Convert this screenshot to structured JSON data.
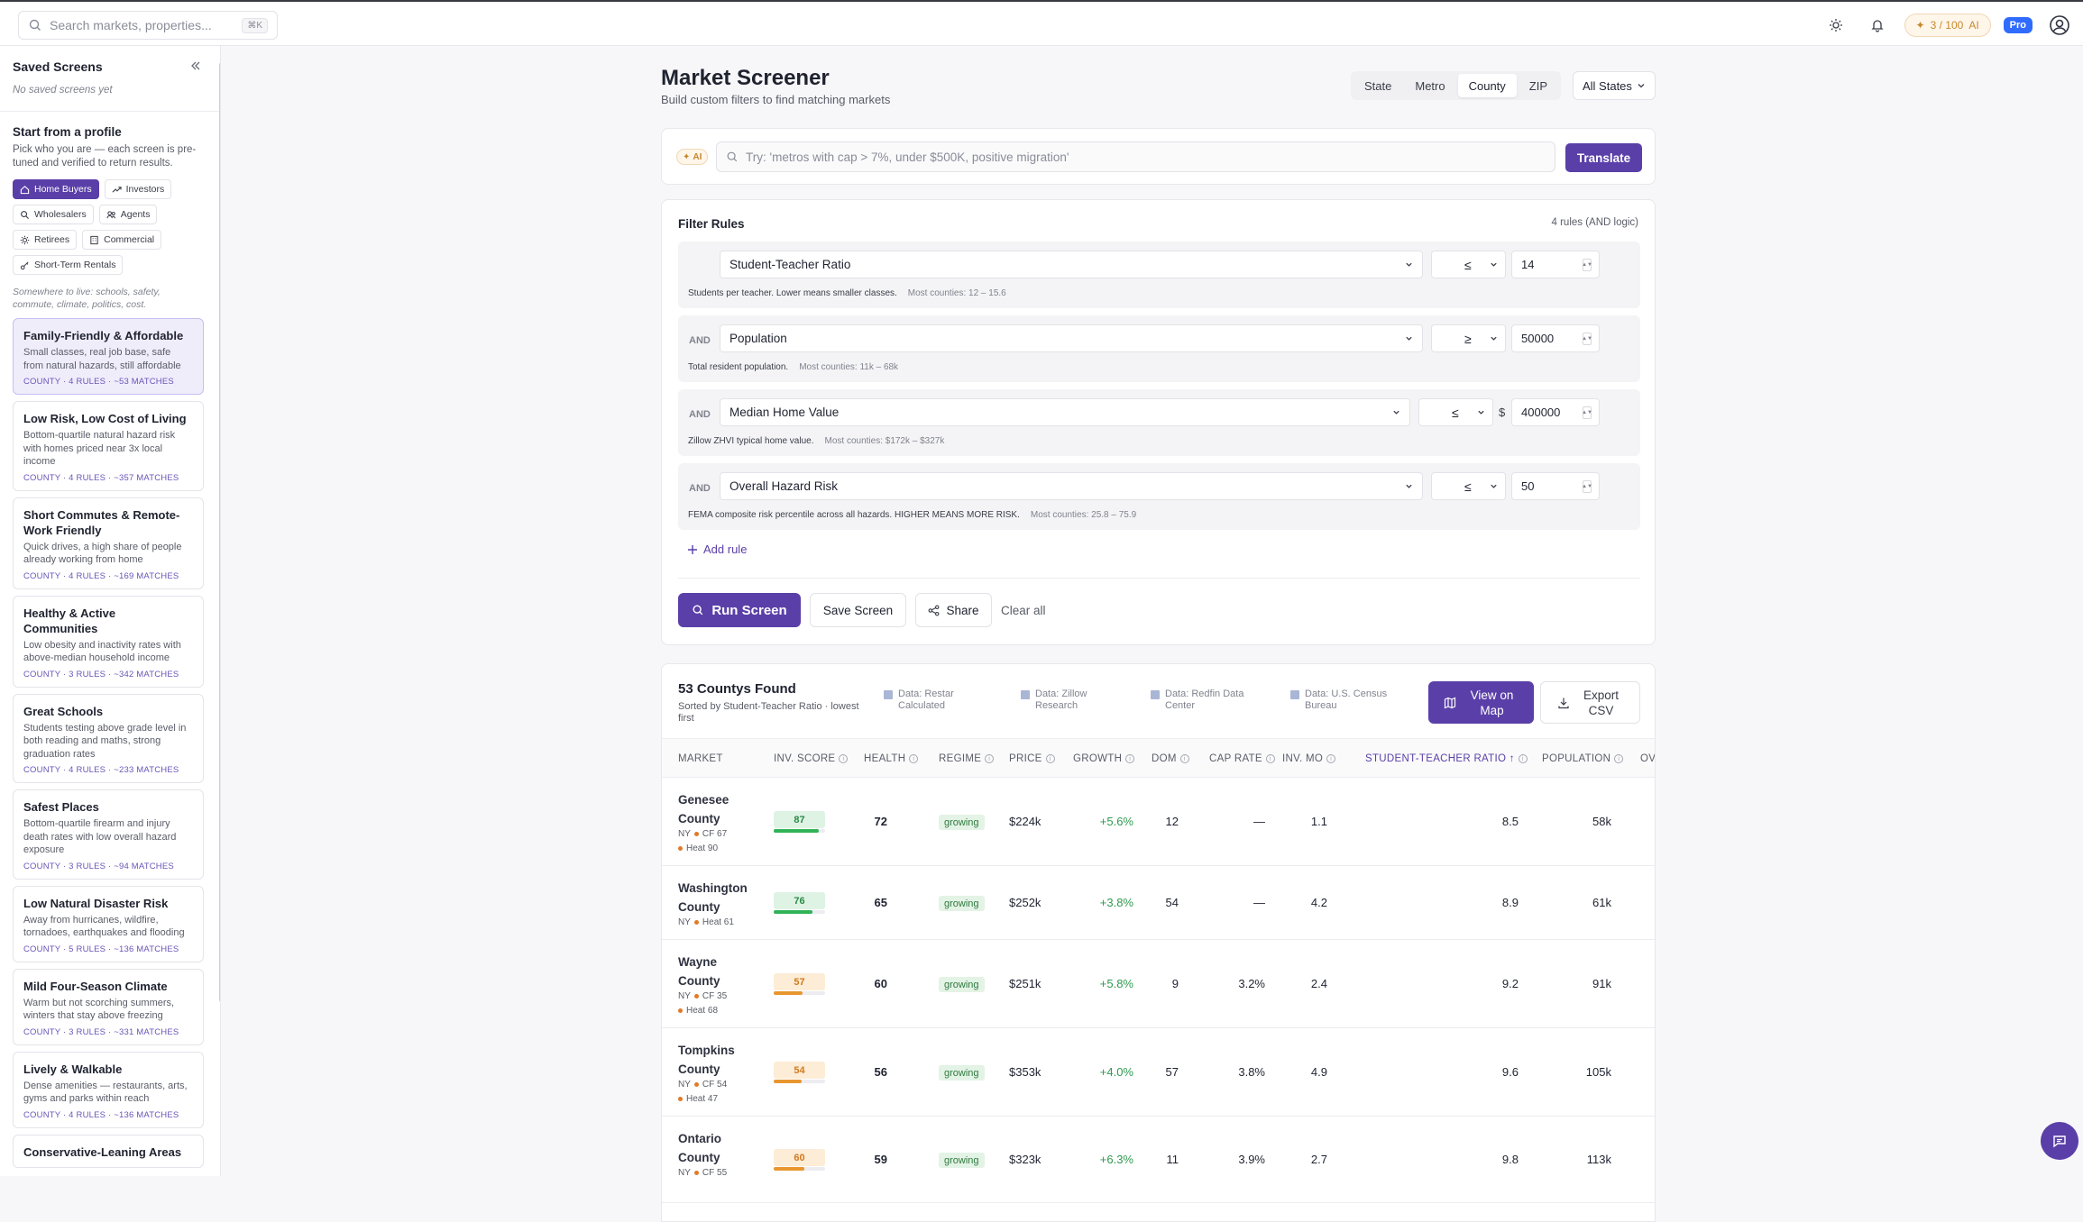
{
  "topbar": {
    "search_placeholder": "Search markets, properties...",
    "search_shortcut": "⌘K",
    "ai_credits": "3 / 100",
    "ai_label": "AI",
    "plan_badge": "Pro"
  },
  "sidebar": {
    "saved_title": "Saved Screens",
    "saved_empty": "No saved screens yet",
    "profile_title": "Start from a profile",
    "profile_desc": "Pick who you are — each screen is pre-tuned and verified to return results.",
    "profiles": [
      {
        "label": "Home Buyers",
        "icon": "home-icon",
        "active": true
      },
      {
        "label": "Investors",
        "icon": "trend-up-icon",
        "active": false
      },
      {
        "label": "Wholesalers",
        "icon": "search-icon",
        "active": false
      },
      {
        "label": "Agents",
        "icon": "users-icon",
        "active": false
      },
      {
        "label": "Retirees",
        "icon": "sun-icon",
        "active": false
      },
      {
        "label": "Commercial",
        "icon": "building-icon",
        "active": false
      },
      {
        "label": "Short-Term Rentals",
        "icon": "key-icon",
        "active": false
      }
    ],
    "hint": "Somewhere to live: schools, safety, commute, climate, politics, cost.",
    "screens": [
      {
        "title": "Family-Friendly & Affordable",
        "desc": "Small classes, real job base, safe from natural hazards, still affordable",
        "meta": "COUNTY · 4 RULES · ~53 MATCHES",
        "active": true
      },
      {
        "title": "Low Risk, Low Cost of Living",
        "desc": "Bottom-quartile natural hazard risk with homes priced near 3x local income",
        "meta": "COUNTY · 4 RULES · ~357 MATCHES",
        "active": false
      },
      {
        "title": "Short Commutes & Remote-Work Friendly",
        "desc": "Quick drives, a high share of people already working from home",
        "meta": "COUNTY · 4 RULES · ~169 MATCHES",
        "active": false
      },
      {
        "title": "Healthy & Active Communities",
        "desc": "Low obesity and inactivity rates with above-median household income",
        "meta": "COUNTY · 3 RULES · ~342 MATCHES",
        "active": false
      },
      {
        "title": "Great Schools",
        "desc": "Students testing above grade level in both reading and maths, strong graduation rates",
        "meta": "COUNTY · 4 RULES · ~233 MATCHES",
        "active": false
      },
      {
        "title": "Safest Places",
        "desc": "Bottom-quartile firearm and injury death rates with low overall hazard exposure",
        "meta": "COUNTY · 3 RULES · ~94 MATCHES",
        "active": false
      },
      {
        "title": "Low Natural Disaster Risk",
        "desc": "Away from hurricanes, wildfire, tornadoes, earthquakes and flooding",
        "meta": "COUNTY · 5 RULES · ~136 MATCHES",
        "active": false
      },
      {
        "title": "Mild Four-Season Climate",
        "desc": "Warm but not scorching summers, winters that stay above freezing",
        "meta": "COUNTY · 3 RULES · ~331 MATCHES",
        "active": false
      },
      {
        "title": "Lively & Walkable",
        "desc": "Dense amenities — restaurants, arts, gyms and parks within reach",
        "meta": "COUNTY · 4 RULES · ~136 MATCHES",
        "active": false
      },
      {
        "title": "Conservative-Leaning Areas",
        "desc": "",
        "meta": "",
        "active": false
      }
    ]
  },
  "header": {
    "title": "Market Screener",
    "subtitle": "Build custom filters to find matching markets",
    "geo_tabs": [
      "State",
      "Metro",
      "County",
      "ZIP"
    ],
    "geo_active": "County",
    "state_filter": "All States"
  },
  "ai": {
    "tag": "AI",
    "placeholder": "Try: 'metros with cap > 7%, under $500K, positive migration'",
    "translate_label": "Translate"
  },
  "filters": {
    "title": "Filter Rules",
    "count_label": "4 rules (AND logic)",
    "rules": [
      {
        "connector": "",
        "field": "Student-Teacher Ratio",
        "op": "≤",
        "prefix": "",
        "value": "14",
        "help": "Students per teacher. Lower means smaller classes.",
        "range": "Most counties: 12 – 15.6"
      },
      {
        "connector": "AND",
        "field": "Population",
        "op": "≥",
        "prefix": "",
        "value": "50000",
        "help": "Total resident population.",
        "range": "Most counties: 11k – 68k"
      },
      {
        "connector": "AND",
        "field": "Median Home Value",
        "op": "≤",
        "prefix": "$",
        "value": "400000",
        "help": "Zillow ZHVI typical home value.",
        "range": "Most counties: $172k – $327k"
      },
      {
        "connector": "AND",
        "field": "Overall Hazard Risk",
        "op": "≤",
        "prefix": "",
        "value": "50",
        "help": "FEMA composite risk percentile across all hazards. HIGHER MEANS MORE RISK.",
        "range": "Most counties: 25.8 – 75.9"
      }
    ],
    "add_rule": "Add rule",
    "run_label": "Run Screen",
    "save_label": "Save Screen",
    "share_label": "Share",
    "clear_label": "Clear all"
  },
  "results": {
    "title": "53 Countys Found",
    "subtitle": "Sorted by Student-Teacher Ratio · lowest first",
    "sources": [
      "Data: Restar Calculated",
      "Data: Zillow Research",
      "Data: Redfin Data Center",
      "Data: U.S. Census Bureau"
    ],
    "view_map": "View on Map",
    "export": "Export CSV",
    "columns": [
      "MARKET",
      "INV. SCORE",
      "HEALTH",
      "REGIME",
      "PRICE",
      "GROWTH",
      "DOM",
      "CAP RATE",
      "INV. MO",
      "STUDENT-TEACHER RATIO ↑",
      "POPULATION",
      "OV"
    ],
    "rows": [
      {
        "name1": "Genesee",
        "name2": "County",
        "state": "NY",
        "cf": "CF 67",
        "heat": "Heat 90",
        "score": "87",
        "score_level": 0.87,
        "health": "72",
        "regime": "growing",
        "price": "$224k",
        "growth": "+5.6%",
        "dom": "12",
        "cap": "—",
        "inv": "1.1",
        "str": "8.5",
        "pop": "58k"
      },
      {
        "name1": "Washington",
        "name2": "County",
        "state": "NY",
        "cf": "",
        "heat": "Heat 61",
        "score": "76",
        "score_level": 0.76,
        "health": "65",
        "regime": "growing",
        "price": "$252k",
        "growth": "+3.8%",
        "dom": "54",
        "cap": "—",
        "inv": "4.2",
        "str": "8.9",
        "pop": "61k"
      },
      {
        "name1": "Wayne",
        "name2": "County",
        "state": "NY",
        "cf": "CF 35",
        "heat": "Heat 68",
        "score": "57",
        "score_level": 0.57,
        "health": "60",
        "regime": "growing",
        "price": "$251k",
        "growth": "+5.8%",
        "dom": "9",
        "cap": "3.2%",
        "inv": "2.4",
        "str": "9.2",
        "pop": "91k"
      },
      {
        "name1": "Tompkins",
        "name2": "County",
        "state": "NY",
        "cf": "CF 54",
        "heat": "Heat 47",
        "score": "54",
        "score_level": 0.54,
        "health": "56",
        "regime": "growing",
        "price": "$353k",
        "growth": "+4.0%",
        "dom": "57",
        "cap": "3.8%",
        "inv": "4.9",
        "str": "9.6",
        "pop": "105k"
      },
      {
        "name1": "Ontario",
        "name2": "County",
        "state": "NY",
        "cf": "CF 55",
        "heat": "",
        "score": "60",
        "score_level": 0.6,
        "health": "59",
        "regime": "growing",
        "price": "$323k",
        "growth": "+6.3%",
        "dom": "11",
        "cap": "3.9%",
        "inv": "2.7",
        "str": "9.8",
        "pop": "113k"
      }
    ]
  },
  "colors": {
    "accent": "#5a3fa8",
    "score_high": "#2fb356",
    "score_mid": "#e8962e",
    "positive": "#2f9a4f"
  }
}
